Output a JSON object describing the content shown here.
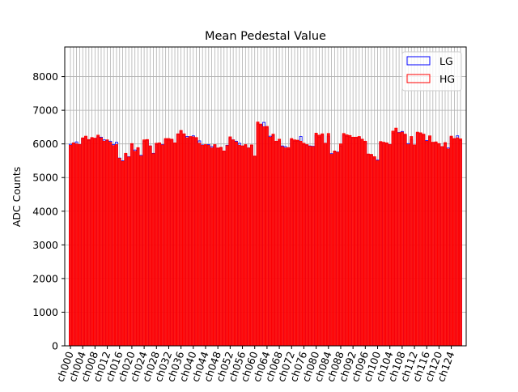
{
  "chart_data": {
    "type": "bar",
    "title": "Mean Pedestal Value",
    "xlabel": "",
    "ylabel": "ADC Counts",
    "ylim": [
      0,
      8880
    ],
    "yticks": [
      0,
      1000,
      2000,
      3000,
      4000,
      5000,
      6000,
      7000,
      8000
    ],
    "grid": true,
    "legend_position": "top-right",
    "tick_every": 4,
    "tick_prefix": "ch",
    "channel_count": 128,
    "colors": {
      "LG": "#0000ff",
      "HG": "#ff0000",
      "grid": "#b0b0b0"
    },
    "series": [
      {
        "name": "LG",
        "values": [
          5990,
          6020,
          6060,
          5980,
          6150,
          6180,
          6100,
          6170,
          6150,
          6210,
          6200,
          6120,
          6100,
          6080,
          5980,
          6050,
          5580,
          5500,
          5680,
          5620,
          5980,
          5820,
          5870,
          5660,
          6080,
          6100,
          5940,
          5720,
          5980,
          6020,
          5980,
          6120,
          6110,
          6120,
          6020,
          6280,
          6380,
          6260,
          6220,
          6180,
          6240,
          6150,
          6090,
          5970,
          5950,
          5980,
          5920,
          5970,
          5860,
          5880,
          5780,
          5960,
          6180,
          6120,
          6080,
          6020,
          5940,
          5950,
          5880,
          5960,
          5620,
          6590,
          6560,
          6640,
          6480,
          6230,
          6250,
          6060,
          6080,
          5940,
          5920,
          5840,
          6120,
          6080,
          6080,
          6220,
          5980,
          5960,
          5940,
          5930,
          6260,
          6200,
          6260,
          6020,
          6230,
          5710,
          5760,
          5760,
          5930,
          6260,
          6220,
          6200,
          6160,
          6170,
          6190,
          6130,
          6050,
          5680,
          5660,
          5580,
          5520,
          6040,
          6000,
          6010,
          5980,
          6320,
          6380,
          6340,
          6370,
          6260,
          6010,
          6120,
          5970,
          6310,
          6300,
          6260,
          6100,
          6200,
          6040,
          6020,
          6000,
          5920,
          6020,
          5880,
          6200,
          6140,
          6240,
          6100
        ]
      },
      {
        "name": "HG",
        "values": [
          5960,
          6030,
          6000,
          5980,
          6180,
          6230,
          6130,
          6190,
          6170,
          6260,
          6180,
          6080,
          6120,
          6050,
          5950,
          5980,
          5570,
          5480,
          5720,
          5610,
          6010,
          5780,
          5890,
          5640,
          6120,
          6130,
          5940,
          5710,
          6020,
          6030,
          5970,
          6160,
          6160,
          6140,
          6030,
          6300,
          6400,
          6300,
          6180,
          6220,
          6210,
          6190,
          6020,
          5960,
          5980,
          5960,
          5880,
          5980,
          5880,
          5900,
          5790,
          5950,
          6210,
          6120,
          6060,
          5960,
          5940,
          5980,
          5880,
          5970,
          5640,
          6650,
          6590,
          6510,
          6520,
          6200,
          6290,
          6080,
          6140,
          5920,
          5880,
          5890,
          6160,
          6120,
          6110,
          6080,
          6020,
          5980,
          5930,
          5920,
          6320,
          6260,
          6300,
          6020,
          6310,
          5690,
          5790,
          5750,
          6000,
          6310,
          6270,
          6250,
          6200,
          6200,
          6220,
          6140,
          6080,
          5700,
          5690,
          5620,
          5500,
          6070,
          6050,
          6030,
          5980,
          6380,
          6470,
          6330,
          6350,
          6290,
          5980,
          6220,
          5970,
          6350,
          6330,
          6290,
          6080,
          6240,
          6050,
          6060,
          6010,
          5920,
          6040,
          5850,
          6230,
          6160,
          6180,
          6150
        ]
      }
    ]
  }
}
